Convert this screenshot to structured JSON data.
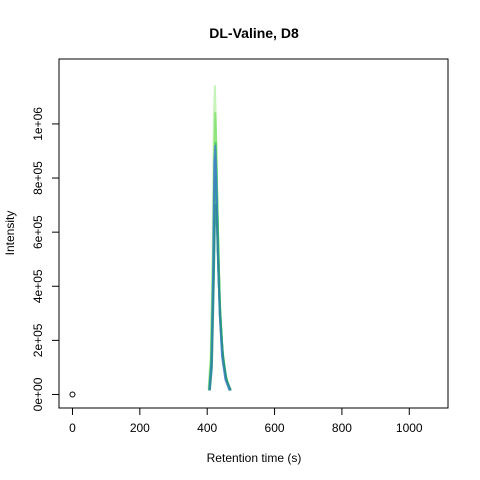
{
  "chart_data": {
    "type": "line",
    "title": "DL-Valine, D8",
    "xlabel": "Retention time (s)",
    "ylabel": "Intensity",
    "xlim": [
      -40,
      1115
    ],
    "ylim": [
      -50000,
      1240000
    ],
    "x_ticks": [
      0,
      200,
      400,
      600,
      800,
      1000
    ],
    "x_tick_labels": [
      "0",
      "200",
      "400",
      "600",
      "800",
      "1000"
    ],
    "y_ticks": [
      0,
      200000,
      400000,
      600000,
      800000,
      1000000
    ],
    "y_tick_labels": [
      "0e+00",
      "2e+05",
      "4e+05",
      "6e+05",
      "8e+05",
      "1e+06"
    ],
    "grid": false,
    "legend": "none",
    "points": [
      {
        "x": 0,
        "y": 0
      }
    ],
    "series": [
      {
        "color": "#b8f0a8",
        "x": [
          404,
          410,
          416,
          420,
          423,
          426,
          430,
          436,
          444,
          454,
          466
        ],
        "y": [
          20000,
          140000,
          520000,
          1020000,
          1140000,
          1000000,
          720000,
          380000,
          180000,
          80000,
          20000
        ]
      },
      {
        "color": "#7fe06a",
        "x": [
          405,
          411,
          417,
          421,
          424,
          427,
          431,
          437,
          445,
          455,
          467
        ],
        "y": [
          18000,
          130000,
          480000,
          900000,
          1040000,
          920000,
          660000,
          350000,
          170000,
          70000,
          18000
        ]
      },
      {
        "color": "#3ad04a",
        "x": [
          406,
          412,
          418,
          422,
          425,
          428,
          432,
          438,
          446,
          456,
          468
        ],
        "y": [
          15000,
          120000,
          450000,
          820000,
          930000,
          820000,
          600000,
          320000,
          150000,
          60000,
          15000
        ]
      },
      {
        "color": "#22b060",
        "x": [
          407,
          413,
          419,
          423,
          426,
          429,
          433,
          439,
          447,
          457,
          469
        ],
        "y": [
          15000,
          110000,
          420000,
          730000,
          800000,
          720000,
          520000,
          290000,
          140000,
          55000,
          15000
        ]
      },
      {
        "color": "#1a9a78",
        "x": [
          406,
          412,
          418,
          421,
          424,
          427,
          431,
          437,
          445,
          455,
          470
        ],
        "y": [
          15000,
          110000,
          430000,
          760000,
          880000,
          780000,
          560000,
          300000,
          150000,
          60000,
          15000
        ]
      },
      {
        "color": "#4a80d8",
        "x": [
          407,
          413,
          418,
          421,
          424,
          427,
          431,
          437,
          444,
          454,
          466
        ],
        "y": [
          15000,
          120000,
          500000,
          860000,
          920000,
          800000,
          560000,
          300000,
          140000,
          55000,
          15000
        ]
      },
      {
        "color": "#2a8a90",
        "x": [
          408,
          414,
          419,
          423,
          426,
          429,
          433,
          440,
          448,
          458,
          470
        ],
        "y": [
          15000,
          100000,
          380000,
          640000,
          700000,
          620000,
          450000,
          250000,
          120000,
          50000,
          15000
        ]
      }
    ]
  }
}
